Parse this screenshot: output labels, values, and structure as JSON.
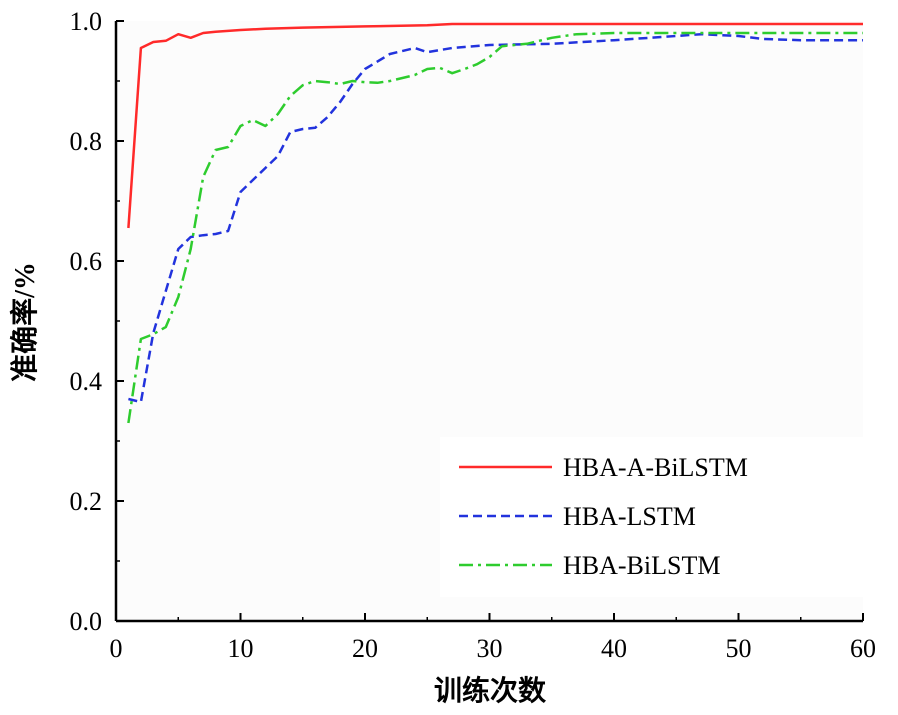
{
  "chart_data": {
    "type": "line",
    "xlabel": "训练次数",
    "ylabel": "准确率/%",
    "xlim": [
      0,
      60
    ],
    "ylim": [
      0.0,
      1.0
    ],
    "xticks": [
      "0",
      "10",
      "20",
      "30",
      "40",
      "50",
      "60"
    ],
    "yticks": [
      "0.0",
      "0.2",
      "0.4",
      "0.6",
      "0.8",
      "1.0"
    ],
    "grid": false,
    "legend_position": "bottom-right",
    "series": [
      {
        "name": "HBA-A-BiLSTM",
        "color": "#ff2a2a",
        "style": "solid",
        "points": [
          [
            1,
            0.655
          ],
          [
            2,
            0.955
          ],
          [
            3,
            0.965
          ],
          [
            4,
            0.967
          ],
          [
            5,
            0.978
          ],
          [
            6,
            0.972
          ],
          [
            7,
            0.98
          ],
          [
            8,
            0.982
          ],
          [
            10,
            0.985
          ],
          [
            12,
            0.987
          ],
          [
            15,
            0.989
          ],
          [
            20,
            0.991
          ],
          [
            25,
            0.993
          ],
          [
            27,
            0.995
          ],
          [
            30,
            0.995
          ],
          [
            40,
            0.995
          ],
          [
            50,
            0.995
          ],
          [
            60,
            0.995
          ]
        ]
      },
      {
        "name": "HBA-LSTM",
        "color": "#2233dd",
        "style": "dashed",
        "points": [
          [
            1,
            0.37
          ],
          [
            2,
            0.365
          ],
          [
            3,
            0.48
          ],
          [
            4,
            0.55
          ],
          [
            5,
            0.62
          ],
          [
            6,
            0.64
          ],
          [
            7,
            0.643
          ],
          [
            8,
            0.645
          ],
          [
            9,
            0.65
          ],
          [
            10,
            0.715
          ],
          [
            11,
            0.735
          ],
          [
            12,
            0.755
          ],
          [
            13,
            0.775
          ],
          [
            14,
            0.815
          ],
          [
            15,
            0.82
          ],
          [
            16,
            0.822
          ],
          [
            17,
            0.84
          ],
          [
            18,
            0.865
          ],
          [
            19,
            0.895
          ],
          [
            20,
            0.92
          ],
          [
            22,
            0.945
          ],
          [
            24,
            0.955
          ],
          [
            25,
            0.948
          ],
          [
            27,
            0.955
          ],
          [
            30,
            0.96
          ],
          [
            35,
            0.962
          ],
          [
            40,
            0.968
          ],
          [
            45,
            0.975
          ],
          [
            47,
            0.978
          ],
          [
            50,
            0.975
          ],
          [
            52,
            0.97
          ],
          [
            55,
            0.968
          ],
          [
            60,
            0.968
          ]
        ]
      },
      {
        "name": "HBA-BiLSTM",
        "color": "#2ecc2e",
        "style": "dashdot",
        "points": [
          [
            1,
            0.33
          ],
          [
            2,
            0.47
          ],
          [
            3,
            0.478
          ],
          [
            4,
            0.49
          ],
          [
            5,
            0.54
          ],
          [
            6,
            0.62
          ],
          [
            7,
            0.74
          ],
          [
            8,
            0.785
          ],
          [
            9,
            0.79
          ],
          [
            10,
            0.825
          ],
          [
            11,
            0.835
          ],
          [
            12,
            0.825
          ],
          [
            13,
            0.845
          ],
          [
            14,
            0.875
          ],
          [
            15,
            0.893
          ],
          [
            16,
            0.9
          ],
          [
            17,
            0.898
          ],
          [
            18,
            0.895
          ],
          [
            19,
            0.9
          ],
          [
            20,
            0.898
          ],
          [
            21,
            0.897
          ],
          [
            22,
            0.9
          ],
          [
            23,
            0.905
          ],
          [
            24,
            0.91
          ],
          [
            25,
            0.92
          ],
          [
            26,
            0.922
          ],
          [
            27,
            0.913
          ],
          [
            28,
            0.92
          ],
          [
            29,
            0.928
          ],
          [
            30,
            0.94
          ],
          [
            31,
            0.958
          ],
          [
            33,
            0.962
          ],
          [
            35,
            0.972
          ],
          [
            37,
            0.978
          ],
          [
            40,
            0.98
          ],
          [
            45,
            0.98
          ],
          [
            50,
            0.98
          ],
          [
            55,
            0.98
          ],
          [
            60,
            0.98
          ]
        ]
      }
    ]
  }
}
